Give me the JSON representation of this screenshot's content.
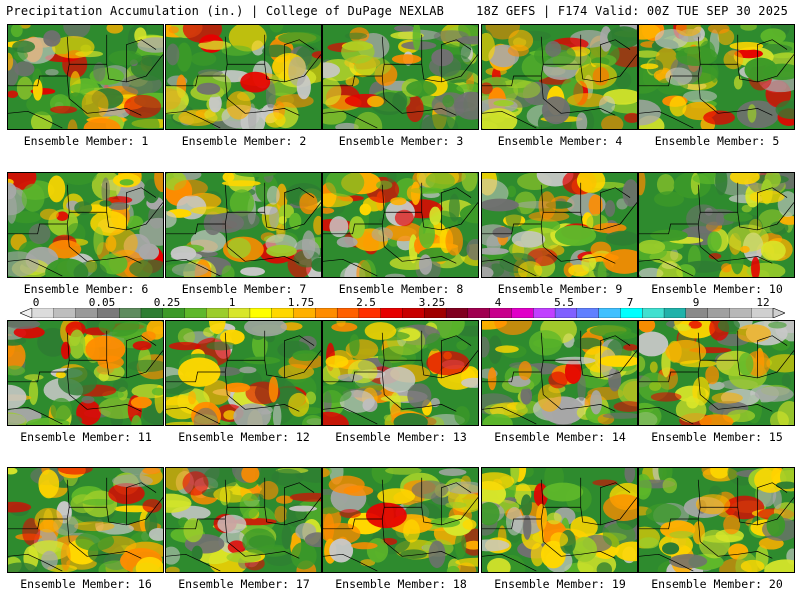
{
  "header": {
    "left": "Precipitation Accumulation (in.) | College of DuPage NEXLAB",
    "right": "18Z GEFS | F174 Valid: 00Z TUE SEP 30 2025"
  },
  "members": [
    {
      "label": "Ensemble Member: 1"
    },
    {
      "label": "Ensemble Member: 2"
    },
    {
      "label": "Ensemble Member: 3"
    },
    {
      "label": "Ensemble Member: 4"
    },
    {
      "label": "Ensemble Member: 5"
    },
    {
      "label": "Ensemble Member: 6"
    },
    {
      "label": "Ensemble Member: 7"
    },
    {
      "label": "Ensemble Member: 8"
    },
    {
      "label": "Ensemble Member: 9"
    },
    {
      "label": "Ensemble Member: 10"
    },
    {
      "label": "Ensemble Member: 11"
    },
    {
      "label": "Ensemble Member: 12"
    },
    {
      "label": "Ensemble Member: 13"
    },
    {
      "label": "Ensemble Member: 14"
    },
    {
      "label": "Ensemble Member: 15"
    },
    {
      "label": "Ensemble Member: 16"
    },
    {
      "label": "Ensemble Member: 17"
    },
    {
      "label": "Ensemble Member: 18"
    },
    {
      "label": "Ensemble Member: 19"
    },
    {
      "label": "Ensemble Member: 20"
    }
  ],
  "colorbar": {
    "labels": [
      "0",
      "0.05",
      "0.25",
      "1",
      "1.75",
      "2.5",
      "3.25",
      "4",
      "5.5",
      "7",
      "9",
      "12"
    ],
    "colors": [
      "#dcdcdc",
      "#bebebe",
      "#9a9a9a",
      "#7a7a7a",
      "#5e8c5e",
      "#2e7d32",
      "#3c9a28",
      "#5fb82a",
      "#9ccd2a",
      "#d8e62a",
      "#ffff00",
      "#ffd700",
      "#ffb000",
      "#ff8c00",
      "#ff6000",
      "#ff3000",
      "#e60000",
      "#c80000",
      "#a00000",
      "#800020",
      "#a00050",
      "#c8008c",
      "#e000c8",
      "#c040ff",
      "#8060ff",
      "#6080ff",
      "#40c0ff",
      "#00ffff",
      "#40e0d0",
      "#20b2aa",
      "#8a8a8a",
      "#a0a0a0",
      "#b8b8b8",
      "#d0d0d0"
    ]
  }
}
